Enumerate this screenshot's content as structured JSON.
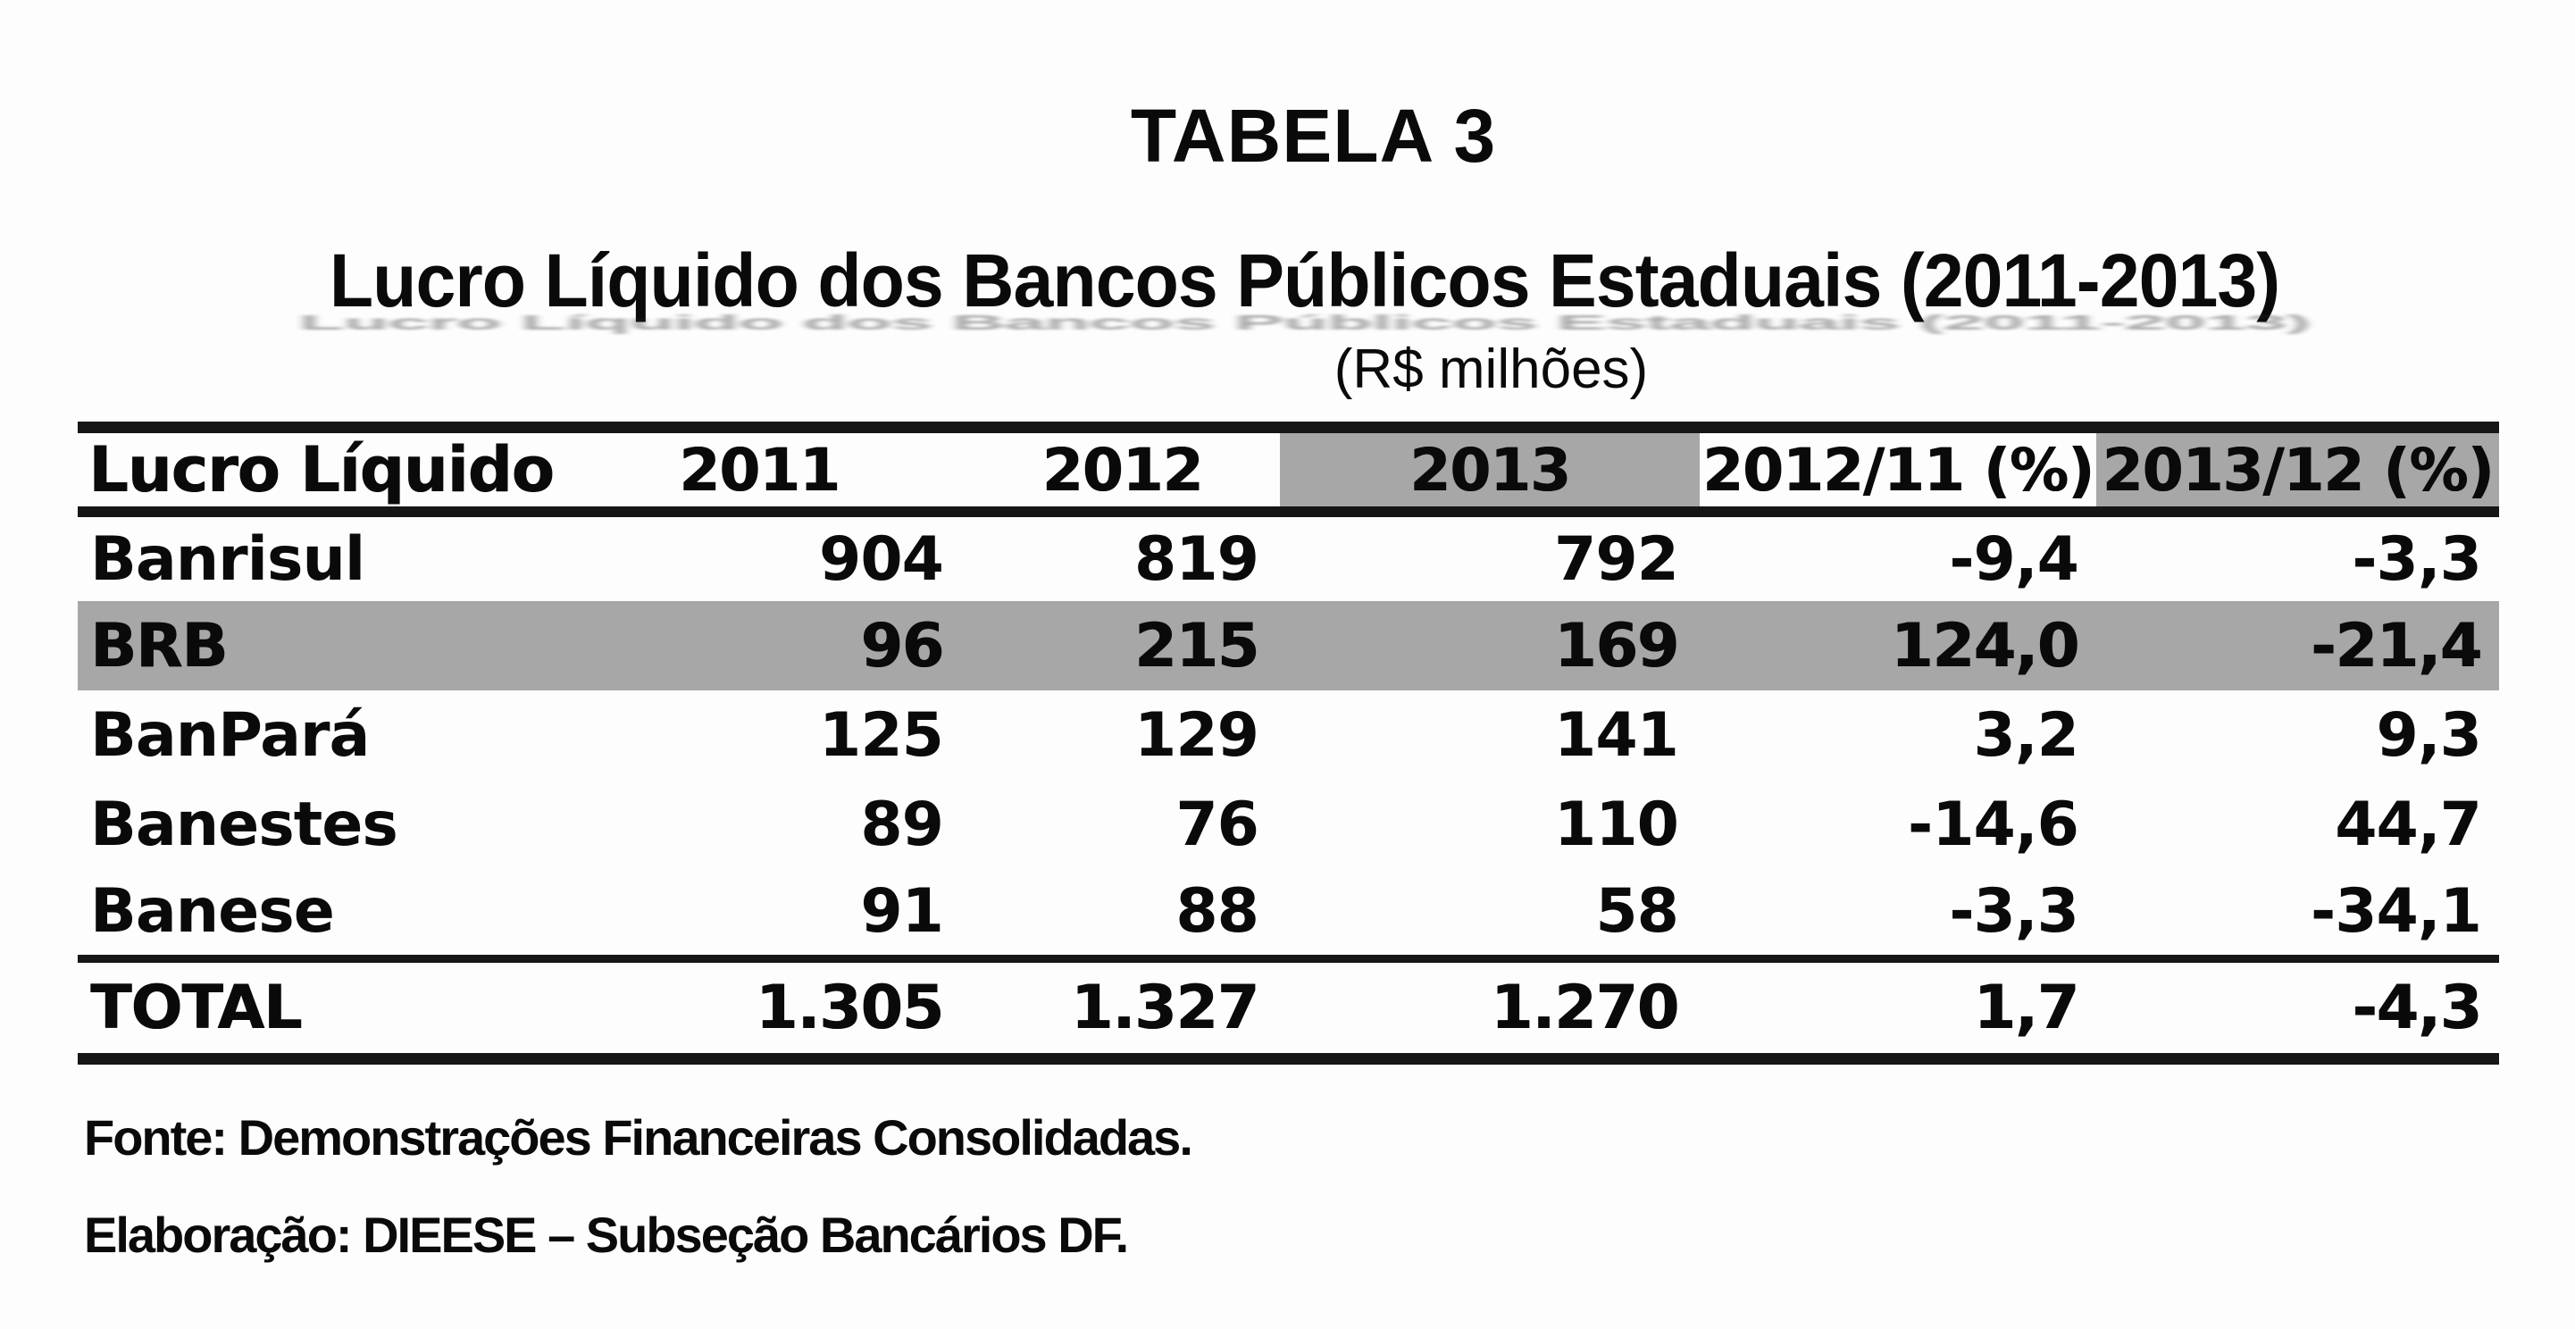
{
  "page": {
    "table_label": "TABELA 3",
    "title": "Lucro Líquido dos Bancos Públicos Estaduais (2011-2013)",
    "unit": "(R$ milhões)",
    "source_note": "Fonte: Demonstrações Financeiras Consolidadas.",
    "elaboration_note": "Elaboração: DIEESE – Subseção Bancários DF."
  },
  "table": {
    "columns": [
      "Lucro Líquido",
      "2011",
      "2012",
      "2013",
      "2012/11 (%)",
      "2013/12 (%)"
    ],
    "highlighted_header_columns": [
      3,
      5
    ],
    "rows": [
      {
        "label": "Banrisul",
        "values": [
          "904",
          "819",
          "792",
          "-9,4",
          "-3,3"
        ],
        "highlight": false
      },
      {
        "label": "BRB",
        "values": [
          "96",
          "215",
          "169",
          "124,0",
          "-21,4"
        ],
        "highlight": true
      },
      {
        "label": "BanPará",
        "values": [
          "125",
          "129",
          "141",
          "3,2",
          "9,3"
        ],
        "highlight": false
      },
      {
        "label": "Banestes",
        "values": [
          "89",
          "76",
          "110",
          "-14,6",
          "44,7"
        ],
        "highlight": false
      },
      {
        "label": "Banese",
        "values": [
          "91",
          "88",
          "58",
          "-3,3",
          "-34,1"
        ],
        "highlight": false
      }
    ],
    "total_row": {
      "label": "TOTAL",
      "values": [
        "1.305",
        "1.327",
        "1.270",
        "1,7",
        "-4,3"
      ]
    }
  },
  "colors": {
    "highlight_gray": "#a7a7a7",
    "border_black": "#161616",
    "page_background": "#fdfdfd",
    "text_black": "#0a0a0a"
  }
}
